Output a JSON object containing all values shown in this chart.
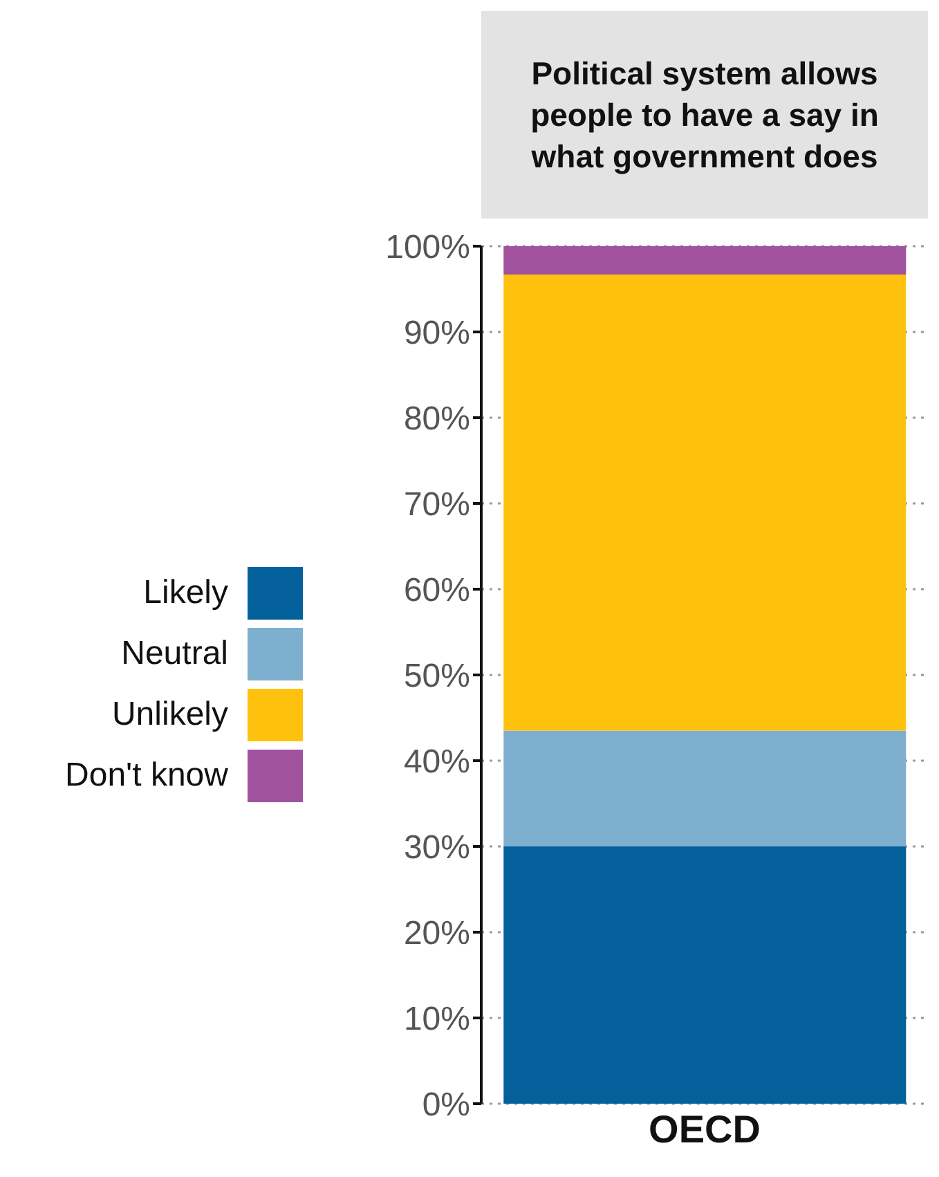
{
  "chart_data": {
    "type": "bar",
    "title": "Political system allows people to have a say in what government does",
    "categories": [
      "OECD"
    ],
    "stacked": true,
    "series": [
      {
        "name": "Likely",
        "color": "#04609a",
        "values": [
          30
        ]
      },
      {
        "name": "Neutral",
        "color": "#7fafcf",
        "values": [
          13.5
        ]
      },
      {
        "name": "Unlikely",
        "color": "#fec10e",
        "values": [
          53.2
        ]
      },
      {
        "name": "Don't know",
        "color": "#a0529f",
        "values": [
          3.3
        ]
      }
    ],
    "ylim": [
      0,
      100
    ],
    "yticks": [
      {
        "value": 0,
        "label": "0%"
      },
      {
        "value": 10,
        "label": "10%"
      },
      {
        "value": 20,
        "label": "20%"
      },
      {
        "value": 30,
        "label": "30%"
      },
      {
        "value": 40,
        "label": "40%"
      },
      {
        "value": 50,
        "label": "50%"
      },
      {
        "value": 60,
        "label": "60%"
      },
      {
        "value": 70,
        "label": "70%"
      },
      {
        "value": 80,
        "label": "80%"
      },
      {
        "value": 90,
        "label": "90%"
      },
      {
        "value": 100,
        "label": "100%"
      }
    ],
    "grid": "y",
    "legend": "left"
  }
}
